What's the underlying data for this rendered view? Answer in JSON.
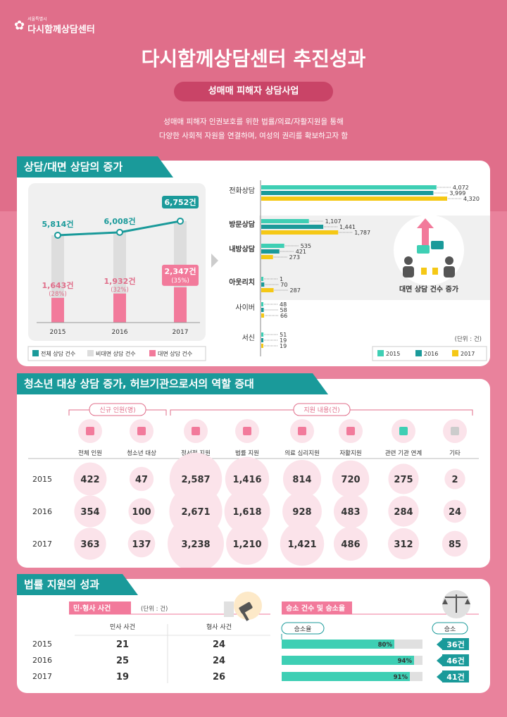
{
  "header": {
    "logo_sub": "서울특별시",
    "logo_main": "다시함께상담센터",
    "title": "다시함께상담센터 추진성과",
    "subtitle": "성매매 피해자 상담사업",
    "intro_line1": "성매매 피해자 인권보호를 위한 법률/의료/자활지원을 통해",
    "intro_line2": "다양한 사회적 자원을 연결하며, 여성의 권리를 확보하고자 함"
  },
  "section1": {
    "title": "상담/대면 상담의 증가",
    "illustration_caption": "대면 상담 건수 증가",
    "unit": "(단위 : 건)"
  },
  "section2": {
    "title": "청소년 대상 상담 증가, 허브기관으로서의 역할 증대",
    "group_new": "신규 인원(명)",
    "group_support": "지원 내용(건)"
  },
  "section3": {
    "title": "법률 지원의 성과",
    "civil_label": "민·형사 사건",
    "unit": "(단위 : 건)",
    "col_civil": "민사 사건",
    "col_criminal": "형사 사건",
    "win_label": "승소 건수 및 승소율",
    "rate_header": "승소율",
    "count_header": "승소"
  },
  "chart_data": [
    {
      "type": "bar",
      "categories": [
        "2015",
        "2016",
        "2017"
      ],
      "series": [
        {
          "name": "전체 상담 건수",
          "values": [
            5814,
            6008,
            6752
          ],
          "labels": [
            "5,814건",
            "6,008건",
            "6,752건"
          ]
        },
        {
          "name": "비대면 상담 건수",
          "values": [
            4171,
            4076,
            4405
          ]
        },
        {
          "name": "대면 상담 건수",
          "values": [
            1643,
            1932,
            2347
          ],
          "labels": [
            "1,643건",
            "1,932건",
            "2,347건"
          ],
          "pct": [
            "(28%)",
            "(32%)",
            "(35%)"
          ]
        }
      ]
    },
    {
      "type": "bar",
      "orientation": "horizontal",
      "categories": [
        "전화상담",
        "방문상담",
        "내방상담",
        "아웃리치",
        "사이버",
        "서신"
      ],
      "series": [
        {
          "name": "2015",
          "color": "#3ecfb4",
          "values": [
            4072,
            1107,
            535,
            1,
            48,
            51
          ]
        },
        {
          "name": "2016",
          "color": "#1a9a9a",
          "values": [
            3999,
            1441,
            421,
            70,
            58,
            19
          ]
        },
        {
          "name": "2017",
          "color": "#f5c816",
          "values": [
            4320,
            1787,
            273,
            287,
            66,
            19
          ]
        }
      ],
      "value_labels": [
        [
          "4,072",
          "3,999",
          "4,320"
        ],
        [
          "1,107",
          "1,441",
          "1,787"
        ],
        [
          "535",
          "421",
          "273"
        ],
        [
          "1",
          "70",
          "287"
        ],
        [
          "48",
          "58",
          "66"
        ],
        [
          "51",
          "19",
          "19"
        ]
      ],
      "xlim": [
        0,
        4320
      ]
    },
    {
      "type": "table",
      "columns": [
        "전체 인원",
        "청소년 대상",
        "정서적 지원",
        "법률 지원",
        "의료 심리지원",
        "자활지원",
        "관련 기관 연계",
        "기타"
      ],
      "rows": [
        {
          "year": "2015",
          "values": [
            422,
            47,
            2587,
            1416,
            814,
            720,
            275,
            2
          ],
          "labels": [
            "422",
            "47",
            "2,587",
            "1,416",
            "814",
            "720",
            "275",
            "2"
          ]
        },
        {
          "year": "2016",
          "values": [
            354,
            100,
            2671,
            1618,
            928,
            483,
            284,
            24
          ],
          "labels": [
            "354",
            "100",
            "2,671",
            "1,618",
            "928",
            "483",
            "284",
            "24"
          ]
        },
        {
          "year": "2017",
          "values": [
            363,
            137,
            3238,
            1210,
            1421,
            486,
            312,
            85
          ],
          "labels": [
            "363",
            "137",
            "3,238",
            "1,210",
            "1,421",
            "486",
            "312",
            "85"
          ]
        }
      ]
    },
    {
      "type": "table",
      "rows": [
        {
          "year": "2015",
          "civil": "21",
          "criminal": "24",
          "rate": 80,
          "rate_label": "80%",
          "wins": "36건"
        },
        {
          "year": "2016",
          "civil": "25",
          "criminal": "24",
          "rate": 94,
          "rate_label": "94%",
          "wins": "46건"
        },
        {
          "year": "2017",
          "civil": "19",
          "criminal": "26",
          "rate": 91,
          "rate_label": "91%",
          "wins": "41건"
        }
      ]
    }
  ],
  "colors": {
    "teal": "#1a9a9a",
    "mint": "#3ecfb4",
    "yellow": "#f5c816",
    "pink": "#f27a9b",
    "gray": "#dddddd",
    "rose": "#e06e8a"
  }
}
